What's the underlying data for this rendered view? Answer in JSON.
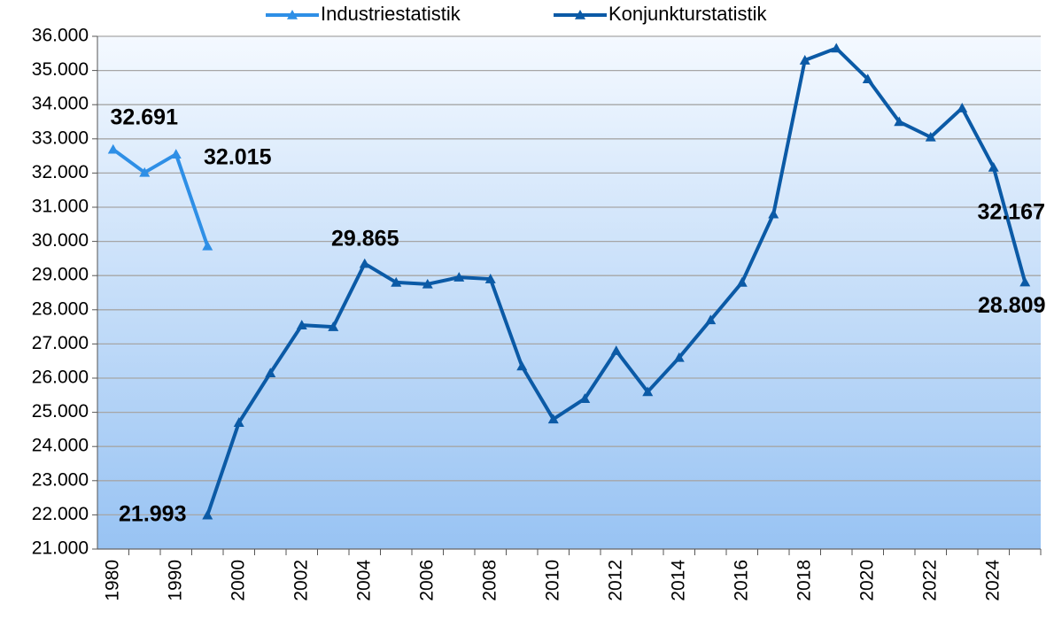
{
  "chart_data": {
    "type": "line",
    "categories": [
      "1980",
      null,
      "1990",
      null,
      "2000",
      null,
      "2002",
      null,
      "2004",
      null,
      "2006",
      null,
      "2008",
      null,
      "2010",
      null,
      "2012",
      null,
      "2014",
      null,
      "2016",
      null,
      "2018",
      null,
      "2020",
      null,
      "2022",
      null,
      "2024",
      null
    ],
    "series": [
      {
        "name": "Industriestatistik",
        "color": "#2e8fe6",
        "values": [
          32691,
          32015,
          32550,
          29865,
          null,
          null,
          null,
          null,
          null,
          null,
          null,
          null,
          null,
          null,
          null,
          null,
          null,
          null,
          null,
          null,
          null,
          null,
          null,
          null,
          null,
          null,
          null,
          null,
          null,
          null
        ],
        "value_labels": [
          "32.691",
          "32.015",
          null,
          "29.865",
          null,
          null,
          null,
          null,
          null,
          null,
          null,
          null,
          null,
          null,
          null,
          null,
          null,
          null,
          null,
          null,
          null,
          null,
          null,
          null,
          null,
          null,
          null,
          null,
          null,
          null
        ]
      },
      {
        "name": "Konjunkturstatistik",
        "color": "#0b5aa6",
        "values": [
          null,
          null,
          null,
          21993,
          24700,
          26150,
          27550,
          27500,
          29350,
          28800,
          28750,
          28950,
          28900,
          26350,
          24800,
          25400,
          26800,
          25600,
          26600,
          27700,
          28800,
          30800,
          35300,
          35650,
          34750,
          33500,
          33050,
          33900,
          32167,
          28809
        ],
        "value_labels": [
          null,
          null,
          null,
          "21.993",
          null,
          null,
          null,
          null,
          null,
          null,
          null,
          null,
          null,
          null,
          null,
          null,
          null,
          null,
          null,
          null,
          null,
          null,
          null,
          null,
          null,
          null,
          null,
          null,
          "32.167",
          "28.809"
        ]
      }
    ],
    "ylim": [
      21000,
      36000
    ],
    "yticks": [
      {
        "value": 21000,
        "label": "21.000"
      },
      {
        "value": 22000,
        "label": "22.000"
      },
      {
        "value": 23000,
        "label": "23.000"
      },
      {
        "value": 24000,
        "label": "24.000"
      },
      {
        "value": 25000,
        "label": "25.000"
      },
      {
        "value": 26000,
        "label": "26.000"
      },
      {
        "value": 27000,
        "label": "27.000"
      },
      {
        "value": 28000,
        "label": "28.000"
      },
      {
        "value": 29000,
        "label": "29.000"
      },
      {
        "value": 30000,
        "label": "30.000"
      },
      {
        "value": 31000,
        "label": "31.000"
      },
      {
        "value": 32000,
        "label": "32.000"
      },
      {
        "value": 33000,
        "label": "33.000"
      },
      {
        "value": 34000,
        "label": "34.000"
      },
      {
        "value": 35000,
        "label": "35.000"
      },
      {
        "value": 36000,
        "label": "36.000"
      }
    ],
    "grid": true,
    "legend": "top"
  }
}
